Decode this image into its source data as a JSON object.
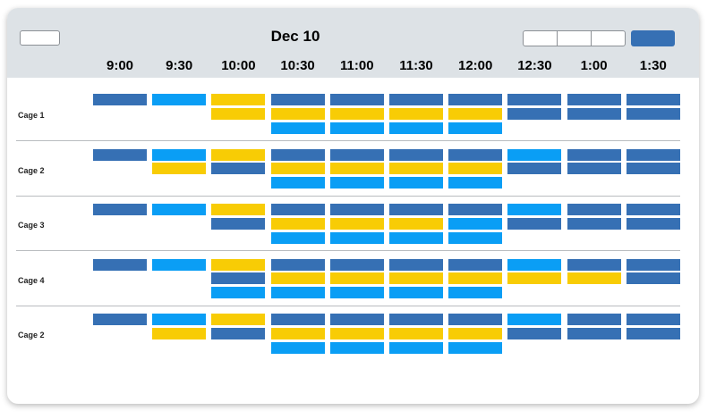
{
  "header": {
    "date_title": "Dec 10",
    "prev_button_label": "",
    "view_buttons": [
      "",
      "",
      ""
    ],
    "today_button_label": ""
  },
  "time_slots": [
    "9:00",
    "9:30",
    "10:00",
    "10:30",
    "11:00",
    "11:30",
    "12:00",
    "12:30",
    "1:00",
    "1:30"
  ],
  "colors": {
    "d": "#3670b4",
    "l": "#0a9ef5",
    "y": "#f8cc05"
  },
  "legend_note": "d = dark blue, l = light blue, y = yellow",
  "rows": [
    {
      "label": "Cage 1",
      "slots": [
        [
          "d"
        ],
        [
          "l"
        ],
        [
          "y",
          "y"
        ],
        [
          "d",
          "y",
          "l"
        ],
        [
          "d",
          "y",
          "l"
        ],
        [
          "d",
          "y",
          "l"
        ],
        [
          "d",
          "y",
          "l"
        ],
        [
          "d",
          "d"
        ],
        [
          "d",
          "d"
        ],
        [
          "d",
          "d"
        ]
      ]
    },
    {
      "label": "Cage 2",
      "slots": [
        [
          "d"
        ],
        [
          "l",
          "y"
        ],
        [
          "y",
          "d"
        ],
        [
          "d",
          "y",
          "l"
        ],
        [
          "d",
          "y",
          "l"
        ],
        [
          "d",
          "y",
          "l"
        ],
        [
          "d",
          "y",
          "l"
        ],
        [
          "l",
          "d"
        ],
        [
          "d",
          "d"
        ],
        [
          "d",
          "d"
        ]
      ]
    },
    {
      "label": "Cage 3",
      "slots": [
        [
          "d"
        ],
        [
          "l"
        ],
        [
          "y",
          "d"
        ],
        [
          "d",
          "y",
          "l"
        ],
        [
          "d",
          "y",
          "l"
        ],
        [
          "d",
          "y",
          "l"
        ],
        [
          "d",
          "l",
          "l"
        ],
        [
          "l",
          "d"
        ],
        [
          "d",
          "d"
        ],
        [
          "d",
          "d"
        ]
      ]
    },
    {
      "label": "Cage 4",
      "slots": [
        [
          "d"
        ],
        [
          "l"
        ],
        [
          "y",
          "d",
          "l"
        ],
        [
          "d",
          "y",
          "l"
        ],
        [
          "d",
          "y",
          "l"
        ],
        [
          "d",
          "y",
          "l"
        ],
        [
          "d",
          "y",
          "l"
        ],
        [
          "l",
          "y"
        ],
        [
          "d",
          "y"
        ],
        [
          "d",
          "d"
        ]
      ]
    },
    {
      "label": "Cage 2",
      "slots": [
        [
          "d"
        ],
        [
          "l",
          "y"
        ],
        [
          "y",
          "d"
        ],
        [
          "d",
          "y",
          "l"
        ],
        [
          "d",
          "y",
          "l"
        ],
        [
          "d",
          "y",
          "l"
        ],
        [
          "d",
          "y",
          "l"
        ],
        [
          "l",
          "d"
        ],
        [
          "d",
          "d"
        ],
        [
          "d",
          "d"
        ]
      ]
    }
  ]
}
